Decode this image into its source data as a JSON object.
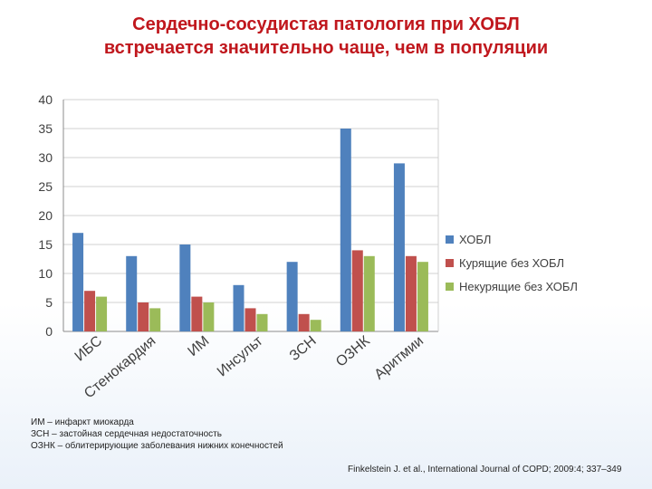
{
  "slide": {
    "title_line1": "Сердечно-сосудистая патология при ХОБЛ",
    "title_line2": "встречается значительно чаще, чем в популяции",
    "notes": [
      "ИМ – инфаркт миокарда",
      "ЗСН – застойная сердечная недостаточность",
      "ОЗНК – облитерирующие заболевания нижних конечностей"
    ],
    "citation": "Finkelstein J. et al., International Journal of COPD; 2009:4; 337–349"
  },
  "chart_data": {
    "type": "bar",
    "title": "",
    "xlabel": "",
    "ylabel": "",
    "categories": [
      "ИБС",
      "Стенокардия",
      "ИМ",
      "Инсульт",
      "ЗСН",
      "ОЗНК",
      "Аритмии"
    ],
    "series": [
      {
        "name": "ХОБЛ",
        "color": "#4f81bd",
        "values": [
          17,
          13,
          15,
          8,
          12,
          35,
          29
        ]
      },
      {
        "name": "Курящие без ХОБЛ",
        "color": "#c0504d",
        "values": [
          7,
          5,
          6,
          4,
          3,
          14,
          13
        ]
      },
      {
        "name": "Некурящие без ХОБЛ",
        "color": "#9bbb59",
        "values": [
          6,
          4,
          5,
          3,
          2,
          13,
          12
        ]
      }
    ],
    "ylim": [
      0,
      40
    ],
    "yticks": [
      "0",
      "5",
      "10",
      "15",
      "20",
      "25",
      "30",
      "35",
      "40"
    ],
    "grid": true,
    "legend_position": "right"
  }
}
